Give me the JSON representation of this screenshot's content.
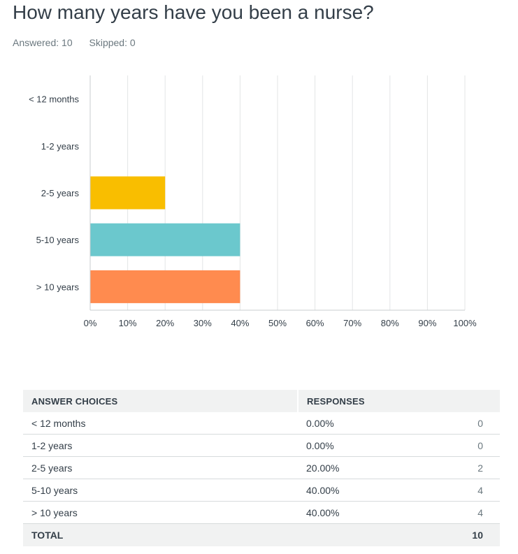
{
  "question": {
    "title": "How many years have you been a nurse?",
    "answered": "Answered: 10",
    "skipped": "Skipped: 0"
  },
  "chart_data": {
    "type": "bar",
    "orientation": "horizontal",
    "categories": [
      "< 12 months",
      "1-2 years",
      "2-5 years",
      "5-10 years",
      "> 10 years"
    ],
    "values": [
      0,
      0,
      20,
      40,
      40
    ],
    "colors": [
      "#6bc8cd",
      "#6bc8cd",
      "#f9be00",
      "#6bc8cd",
      "#ff8b4f"
    ],
    "xlim": [
      0,
      100
    ],
    "xticks": [
      "0%",
      "10%",
      "20%",
      "30%",
      "40%",
      "50%",
      "60%",
      "70%",
      "80%",
      "90%",
      "100%"
    ],
    "grid": true,
    "title": "",
    "xlabel": "",
    "ylabel": ""
  },
  "table": {
    "headers": {
      "answer": "ANSWER CHOICES",
      "responses": "RESPONSES"
    },
    "rows": [
      {
        "choice": "< 12 months",
        "percent": "0.00%",
        "count": "0"
      },
      {
        "choice": "1-2 years",
        "percent": "0.00%",
        "count": "0"
      },
      {
        "choice": "2-5 years",
        "percent": "20.00%",
        "count": "2"
      },
      {
        "choice": "5-10 years",
        "percent": "40.00%",
        "count": "4"
      },
      {
        "choice": "> 10 years",
        "percent": "40.00%",
        "count": "4"
      }
    ],
    "total": {
      "label": "TOTAL",
      "count": "10"
    }
  }
}
